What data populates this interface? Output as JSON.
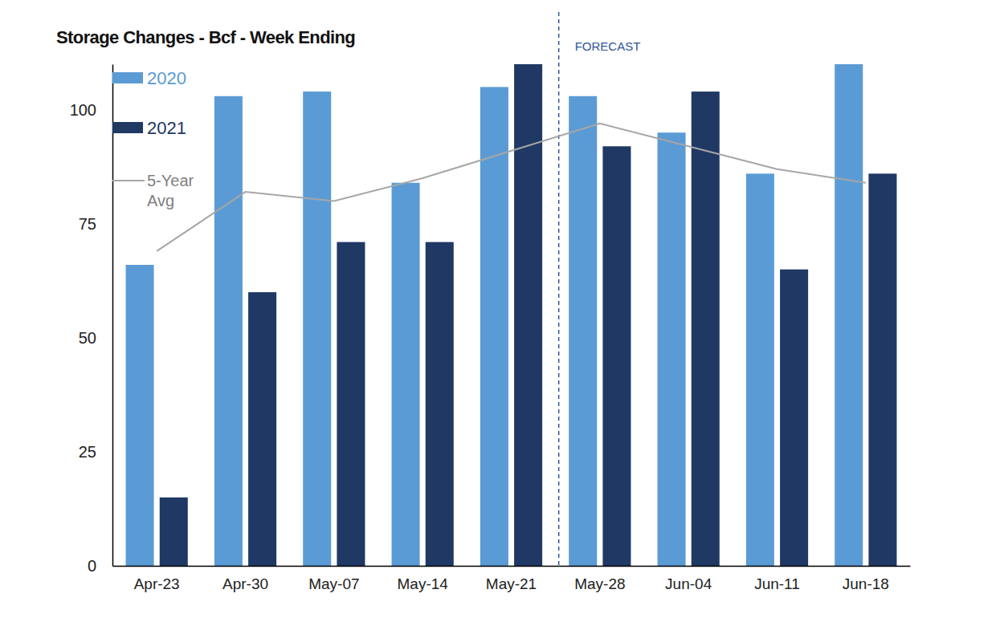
{
  "chart_data": {
    "type": "bar",
    "title": "Storage Changes - Bcf - Week Ending",
    "categories": [
      "Apr-23",
      "Apr-30",
      "May-07",
      "May-14",
      "May-21",
      "May-28",
      "Jun-04",
      "Jun-11",
      "Jun-18"
    ],
    "series": [
      {
        "name": "2020",
        "type": "bar",
        "color": "#5b9bd5",
        "values": [
          66,
          103,
          104,
          84,
          105,
          103,
          95,
          86,
          110
        ]
      },
      {
        "name": "2021",
        "type": "bar",
        "color": "#203864",
        "values": [
          15,
          60,
          71,
          71,
          110,
          92,
          104,
          65,
          86
        ]
      },
      {
        "name": "5-Year Avg",
        "type": "line",
        "color": "#a6a6a6",
        "values": [
          69,
          82,
          80,
          85,
          91,
          97,
          92,
          87,
          84
        ]
      }
    ],
    "ylim": [
      0,
      110
    ],
    "yticks": [
      0,
      25,
      50,
      75,
      100
    ],
    "grid": false,
    "legend": "top-left",
    "annotations": [
      {
        "text": "FORECAST",
        "x": "May-28"
      }
    ]
  }
}
